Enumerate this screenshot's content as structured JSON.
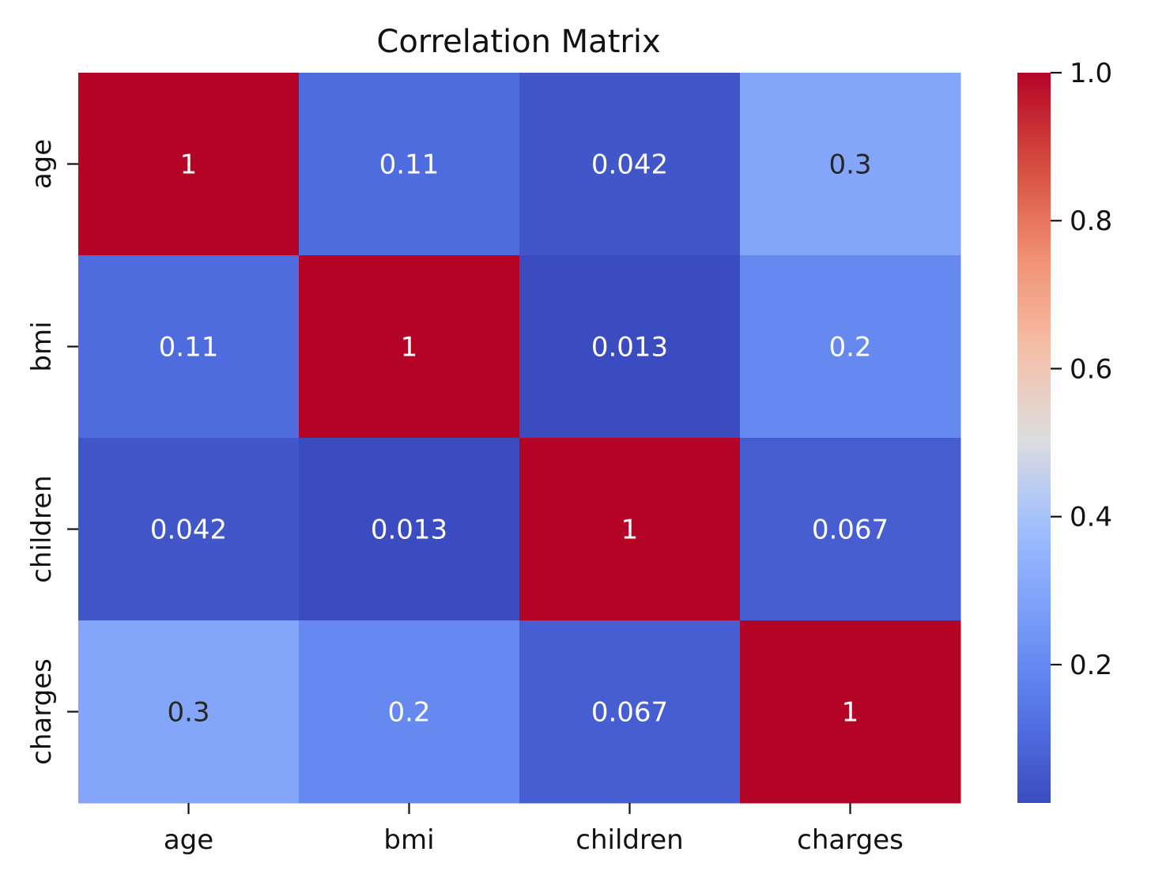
{
  "chart_data": {
    "type": "heatmap",
    "title": "Correlation Matrix",
    "x_labels": [
      "age",
      "bmi",
      "children",
      "charges"
    ],
    "y_labels": [
      "age",
      "bmi",
      "children",
      "charges"
    ],
    "values": [
      [
        1,
        0.11,
        0.042,
        0.3
      ],
      [
        0.11,
        1,
        0.013,
        0.2
      ],
      [
        0.042,
        0.013,
        1,
        0.067
      ],
      [
        0.3,
        0.2,
        0.067,
        1
      ]
    ],
    "annotations": [
      [
        "1",
        "0.11",
        "0.042",
        "0.3"
      ],
      [
        "0.11",
        "1",
        "0.013",
        "0.2"
      ],
      [
        "0.042",
        "0.013",
        "1",
        "0.067"
      ],
      [
        "0.3",
        "0.2",
        "0.067",
        "1"
      ]
    ],
    "colormap": "coolwarm",
    "colorbar": {
      "vmin": 0.013,
      "vmax": 1.0,
      "ticks": [
        0.2,
        0.4,
        0.6,
        0.8,
        1.0
      ],
      "tick_labels": [
        "0.2",
        "0.4",
        "0.6",
        "0.8",
        "1.0"
      ]
    }
  }
}
